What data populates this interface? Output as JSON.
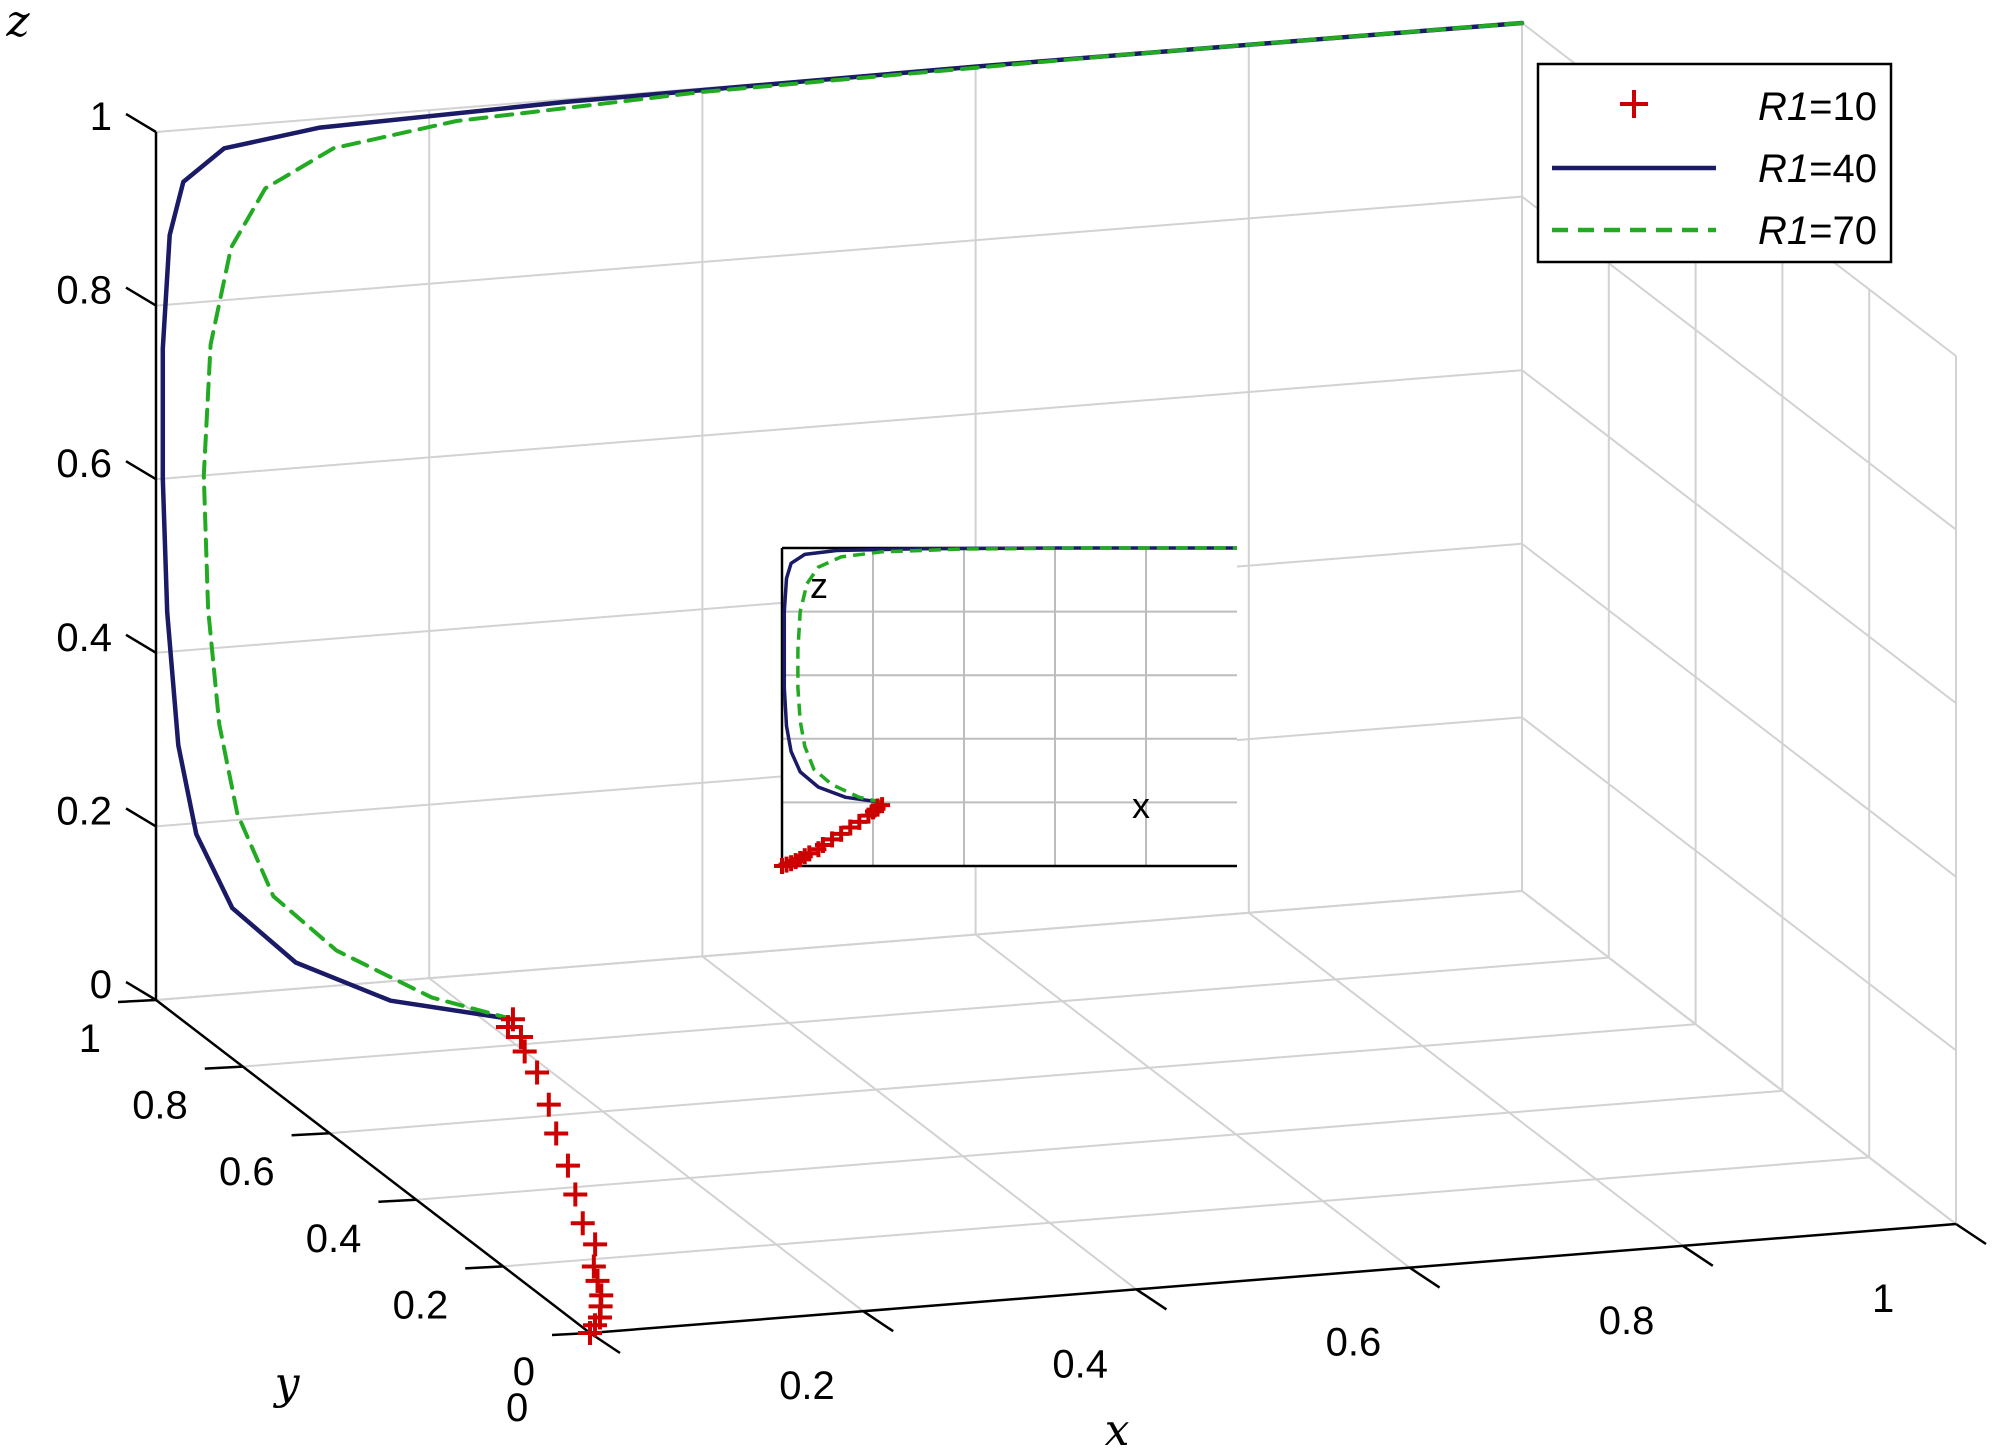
{
  "chart_data": {
    "type": "line",
    "view": "3d",
    "xlabel": "x",
    "ylabel": "y",
    "zlabel": "z",
    "xlim": [
      0,
      1
    ],
    "ylim": [
      0,
      1
    ],
    "zlim": [
      0,
      1
    ],
    "grid": true,
    "legend_position": "top-right",
    "x_ticks": [
      "0",
      "0.2",
      "0.4",
      "0.6",
      "0.8",
      "1"
    ],
    "y_ticks": [
      "0",
      "0.2",
      "0.4",
      "0.6",
      "0.8",
      "1"
    ],
    "z_ticks": [
      "0",
      "0.2",
      "0.4",
      "0.6",
      "0.8",
      "1"
    ],
    "series": [
      {
        "name": "R1=10",
        "legend_prefix": "R1",
        "legend_value": "=10",
        "style": "plus-markers",
        "color": "#cc0000",
        "points": [
          [
            0,
            0,
            0
          ],
          [
            0.01,
            0.02,
            0
          ],
          [
            0.02,
            0.04,
            0
          ],
          [
            0.03,
            0.07,
            0
          ],
          [
            0.04,
            0.1,
            0
          ],
          [
            0.05,
            0.14,
            0
          ],
          [
            0.06,
            0.18,
            0
          ],
          [
            0.08,
            0.24,
            0
          ],
          [
            0.09,
            0.3,
            0
          ],
          [
            0.11,
            0.38,
            0
          ],
          [
            0.13,
            0.46,
            0
          ],
          [
            0.15,
            0.55,
            0
          ],
          [
            0.17,
            0.63,
            0
          ],
          [
            0.19,
            0.72,
            0
          ],
          [
            0.2,
            0.78,
            0
          ],
          [
            0.21,
            0.82,
            0
          ],
          [
            0.21,
            0.85,
            0
          ],
          [
            0.22,
            0.87,
            0
          ]
        ]
      },
      {
        "name": "R1=40",
        "legend_prefix": "R1",
        "legend_value": "=40",
        "style": "solid",
        "color": "#1a1a66",
        "points": [
          [
            0.22,
            0.87,
            0
          ],
          [
            0.14,
            0.9,
            0.02
          ],
          [
            0.08,
            0.93,
            0.06
          ],
          [
            0.04,
            0.95,
            0.12
          ],
          [
            0.02,
            0.97,
            0.2
          ],
          [
            0.01,
            0.98,
            0.3
          ],
          [
            0.005,
            0.99,
            0.45
          ],
          [
            0.005,
            1,
            0.6
          ],
          [
            0.005,
            1,
            0.75
          ],
          [
            0.01,
            1,
            0.88
          ],
          [
            0.02,
            1,
            0.94
          ],
          [
            0.05,
            1,
            0.975
          ],
          [
            0.12,
            1,
            0.99
          ],
          [
            0.3,
            1,
            0.997
          ],
          [
            0.6,
            1,
            1
          ],
          [
            1,
            1,
            1
          ]
        ]
      },
      {
        "name": "R1=70",
        "legend_prefix": "R1",
        "legend_value": "=70",
        "style": "dashed",
        "color": "#22aa22",
        "points": [
          [
            0.22,
            0.87,
            0
          ],
          [
            0.17,
            0.9,
            0.02
          ],
          [
            0.11,
            0.93,
            0.07
          ],
          [
            0.07,
            0.95,
            0.13
          ],
          [
            0.05,
            0.97,
            0.22
          ],
          [
            0.04,
            0.98,
            0.32
          ],
          [
            0.035,
            0.99,
            0.45
          ],
          [
            0.035,
            1,
            0.6
          ],
          [
            0.04,
            1,
            0.75
          ],
          [
            0.055,
            1,
            0.86
          ],
          [
            0.08,
            1,
            0.925
          ],
          [
            0.13,
            1,
            0.965
          ],
          [
            0.22,
            1,
            0.985
          ],
          [
            0.4,
            1,
            0.996
          ],
          [
            0.7,
            1,
            1
          ],
          [
            1,
            1,
            1
          ]
        ]
      }
    ],
    "inset": {
      "xlabel": "x",
      "zlabel": "z",
      "xlim": [
        0,
        1
      ],
      "zlim": [
        0,
        1
      ]
    }
  }
}
